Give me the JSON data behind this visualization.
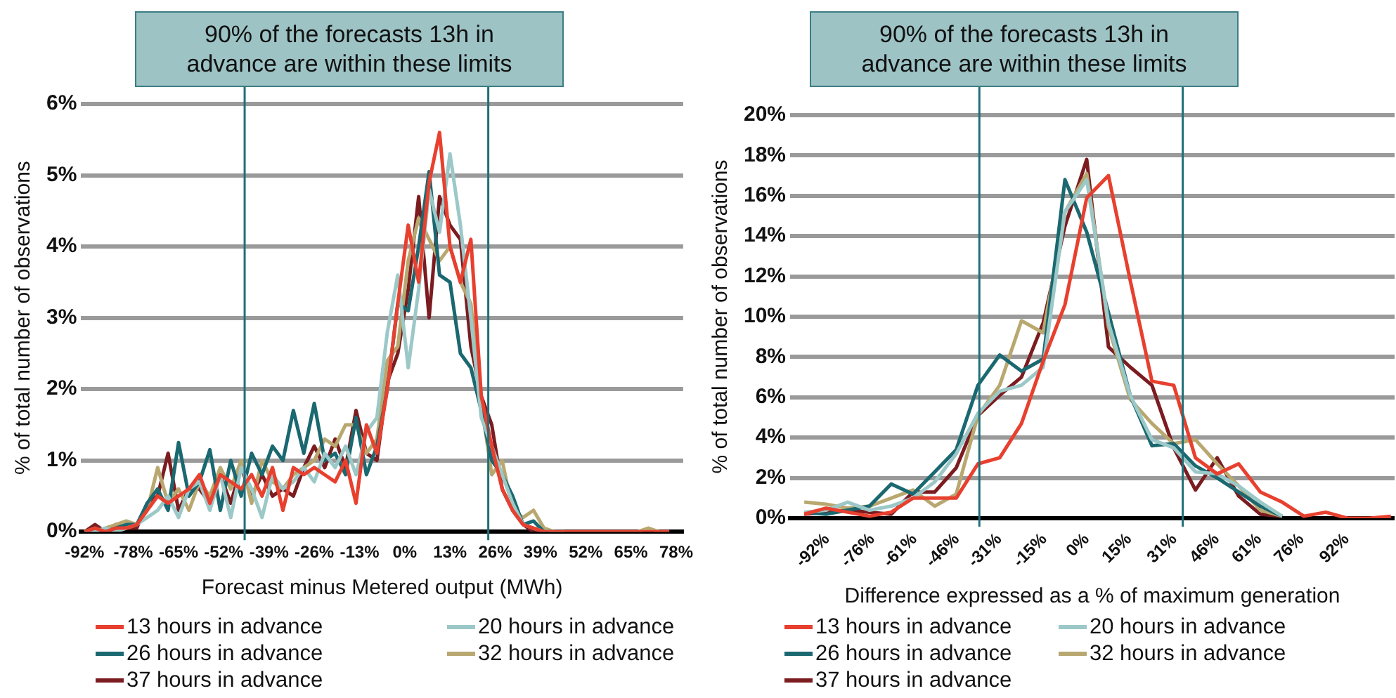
{
  "chart_data": [
    {
      "type": "line",
      "title": "90% of the forecasts 13h in advance are within these limits",
      "xlabel": "Forecast minus Metered output (MWh)",
      "ylabel": "% of total number of observations",
      "grid": "y",
      "legend": "bottom",
      "marker": "none",
      "line_style": "solid",
      "x": [
        -92,
        -89,
        -86,
        -83,
        -80,
        -77,
        -74,
        -71,
        -68,
        -65,
        -62,
        -59,
        -56,
        -53,
        -50,
        -47,
        -44,
        -41,
        -38,
        -35,
        -32,
        -29,
        -26,
        -23,
        -20,
        -17,
        -14,
        -11,
        -8,
        -5,
        -2,
        1,
        4,
        7,
        10,
        13,
        16,
        19,
        22,
        25,
        28,
        31,
        34,
        37,
        40,
        43,
        46,
        49,
        52,
        55,
        58,
        61,
        64,
        67,
        70,
        73,
        76
      ],
      "xlim": [
        -93,
        80
      ],
      "xticks": [
        {
          "value": -92,
          "label": "-92%"
        },
        {
          "value": -78,
          "label": "-78%"
        },
        {
          "value": -65,
          "label": "-65%"
        },
        {
          "value": -52,
          "label": "-52%"
        },
        {
          "value": -39,
          "label": "-39%"
        },
        {
          "value": -26,
          "label": "-26%"
        },
        {
          "value": -13,
          "label": "-13%"
        },
        {
          "value": 0,
          "label": "0%"
        },
        {
          "value": 13,
          "label": "13%"
        },
        {
          "value": 26,
          "label": "26%"
        },
        {
          "value": 39,
          "label": "39%"
        },
        {
          "value": 52,
          "label": "52%"
        },
        {
          "value": 65,
          "label": "65%"
        },
        {
          "value": 78,
          "label": "78%"
        }
      ],
      "ylim": [
        0,
        6
      ],
      "yticks": [
        {
          "value": 0,
          "label": "0%"
        },
        {
          "value": 1,
          "label": "1%"
        },
        {
          "value": 2,
          "label": "2%"
        },
        {
          "value": 3,
          "label": "3%"
        },
        {
          "value": 4,
          "label": "4%"
        },
        {
          "value": 5,
          "label": "5%"
        },
        {
          "value": 6,
          "label": "6%"
        }
      ],
      "ref_lines": [
        {
          "axis": "x",
          "value": -46,
          "color": "#1f6f78"
        },
        {
          "axis": "x",
          "value": 24,
          "color": "#1f6f78"
        }
      ],
      "series": [
        {
          "name": "13 hours in advance",
          "color": "#e8402f",
          "values": [
            0,
            0.05,
            0,
            0.05,
            0.05,
            0.1,
            0.3,
            0.5,
            0.4,
            0.5,
            0.6,
            0.8,
            0.4,
            0.8,
            0.7,
            0.6,
            0.8,
            0.5,
            0.9,
            0.3,
            0.9,
            0.8,
            0.9,
            0.8,
            0.7,
            1.0,
            0.4,
            1.5,
            1.1,
            2.0,
            3.2,
            4.3,
            3.5,
            4.9,
            5.6,
            4.0,
            3.5,
            4.1,
            1.9,
            1.2,
            0.6,
            0.3,
            0.1,
            0.05,
            0,
            0,
            0,
            0,
            0,
            0,
            0,
            0,
            0,
            0,
            0,
            0,
            0
          ]
        },
        {
          "name": "20 hours in advance",
          "color": "#9cc8c8",
          "values": [
            0,
            0,
            0.05,
            0,
            0.05,
            0.1,
            0.2,
            0.3,
            0.5,
            0.2,
            0.6,
            0.7,
            0.3,
            0.8,
            0.2,
            0.9,
            0.6,
            0.2,
            0.8,
            0.6,
            0.7,
            0.9,
            0.7,
            1.1,
            0.9,
            1.2,
            0.8,
            1.4,
            1.6,
            2.8,
            3.6,
            2.3,
            3.4,
            4.8,
            4.2,
            5.3,
            4.3,
            3.0,
            1.6,
            1.2,
            0.8,
            0.4,
            0.1,
            0.05,
            0,
            0,
            0,
            null,
            null,
            null,
            null,
            null,
            null,
            null,
            null,
            null,
            null
          ]
        },
        {
          "name": "26 hours in advance",
          "color": "#1a6870",
          "values": [
            0,
            0.05,
            0,
            0.05,
            0.1,
            0.1,
            0.4,
            0.6,
            0.3,
            1.25,
            0.5,
            0.7,
            1.15,
            0.3,
            1.0,
            0.5,
            1.1,
            0.8,
            1.2,
            1.0,
            1.7,
            1.1,
            1.8,
            1.0,
            1.1,
            0.8,
            1.6,
            0.8,
            1.2,
            2.0,
            3.2,
            3.1,
            4.0,
            5.05,
            3.6,
            3.5,
            2.5,
            2.3,
            1.7,
            1.0,
            0.8,
            0.5,
            0.1,
            0.15,
            0,
            0,
            0,
            null,
            null,
            null,
            null,
            null,
            null,
            null,
            null,
            null,
            null
          ]
        },
        {
          "name": "32 hours in advance",
          "color": "#b8a870",
          "values": [
            0,
            0,
            0.05,
            0.1,
            0.15,
            0.1,
            0.3,
            0.9,
            0.4,
            0.6,
            0.3,
            0.7,
            0.5,
            0.9,
            0.6,
            1.0,
            0.4,
            1.0,
            0.7,
            0.6,
            0.8,
            0.9,
            1.0,
            1.3,
            1.2,
            1.5,
            1.5,
            1.1,
            1.3,
            2.4,
            2.6,
            3.8,
            4.4,
            4.1,
            3.8,
            4.0,
            3.5,
            3.2,
            1.8,
            0.8,
            1.0,
            0.3,
            0.2,
            0.3,
            0.05,
            0,
            0,
            0,
            0,
            0,
            0,
            0,
            0,
            0,
            0.05,
            0,
            0
          ]
        },
        {
          "name": "37 hours in advance",
          "color": "#7b1c20",
          "values": [
            0,
            0.1,
            0,
            0.1,
            0.05,
            0.05,
            0.4,
            0.5,
            1.1,
            0.3,
            0.6,
            0.6,
            0.4,
            0.8,
            0.4,
            0.9,
            0.5,
            0.8,
            0.5,
            0.6,
            0.5,
            0.9,
            1.2,
            0.9,
            1.3,
            0.9,
            1.7,
            1.1,
            1.0,
            2.1,
            2.5,
            3.4,
            4.7,
            3.0,
            4.7,
            4.3,
            4.1,
            2.6,
            1.9,
            1.5,
            0.6,
            0.3,
            0.1,
            0,
            0,
            0,
            0,
            0,
            0,
            0,
            0,
            0,
            0,
            0,
            0,
            0,
            0
          ]
        }
      ]
    },
    {
      "type": "line",
      "title": "90% of the forecasts 13h in advance are within these limits",
      "xlabel": "Difference expressed as a % of maximum generation",
      "ylabel": "% of total number of observations",
      "grid": "y",
      "legend": "bottom",
      "marker": "none",
      "line_style": "solid",
      "x": [
        -100,
        -92.3,
        -84.6,
        -76.9,
        -69.2,
        -61.5,
        -53.8,
        -46.2,
        -38.5,
        -30.8,
        -23.1,
        -15.4,
        -7.7,
        0,
        7.7,
        15.4,
        23.1,
        30.8,
        38.5,
        46.2,
        53.8,
        61.5,
        69.2,
        76.9,
        84.6,
        92.3,
        100,
        107.7
      ],
      "xlim": [
        -105,
        109
      ],
      "xticks": [
        {
          "value": -92,
          "label": "-92%"
        },
        {
          "value": -76,
          "label": "-76%"
        },
        {
          "value": -61,
          "label": "-61%"
        },
        {
          "value": -46,
          "label": "-46%"
        },
        {
          "value": -31,
          "label": "-31%"
        },
        {
          "value": -15,
          "label": "-15%"
        },
        {
          "value": 0,
          "label": "0%"
        },
        {
          "value": 15,
          "label": "15%"
        },
        {
          "value": 31,
          "label": "31%"
        },
        {
          "value": 46,
          "label": "46%"
        },
        {
          "value": 61,
          "label": "61%"
        },
        {
          "value": 76,
          "label": "76%"
        },
        {
          "value": 92,
          "label": "92%"
        }
      ],
      "ylim": [
        0,
        20
      ],
      "yticks": [
        {
          "value": 0,
          "label": "0%"
        },
        {
          "value": 2,
          "label": "2%"
        },
        {
          "value": 4,
          "label": "4%"
        },
        {
          "value": 6,
          "label": "6%"
        },
        {
          "value": 8,
          "label": "8%"
        },
        {
          "value": 10,
          "label": "10%"
        },
        {
          "value": 12,
          "label": "12%"
        },
        {
          "value": 14,
          "label": "14%"
        },
        {
          "value": 16,
          "label": "16%"
        },
        {
          "value": 18,
          "label": "18%"
        },
        {
          "value": 20,
          "label": "20%"
        }
      ],
      "ref_lines": [
        {
          "axis": "x",
          "value": -38,
          "color": "#1f6f78"
        },
        {
          "axis": "x",
          "value": 34,
          "color": "#1f6f78"
        }
      ],
      "series": [
        {
          "name": "13 hours in advance",
          "color": "#e8402f",
          "values": [
            0.2,
            0.5,
            0.3,
            0.1,
            0.3,
            1.0,
            1.0,
            1.0,
            2.7,
            3.0,
            4.7,
            7.8,
            10.6,
            15.9,
            17.0,
            11.8,
            6.8,
            6.6,
            3.0,
            2.2,
            2.7,
            1.3,
            0.8,
            0.1,
            0.3,
            0,
            0,
            0.1
          ]
        },
        {
          "name": "20 hours in advance",
          "color": "#9cc8c8",
          "values": [
            0.3,
            0.4,
            0.8,
            0.4,
            0.6,
            1.0,
            1.8,
            3.2,
            5.2,
            6.3,
            6.6,
            7.5,
            15.2,
            16.8,
            9.7,
            6.1,
            3.9,
            3.5,
            2.3,
            2.2,
            1.6,
            0.8,
            0.1,
            null,
            null,
            null,
            null,
            null
          ]
        },
        {
          "name": "26 hours in advance",
          "color": "#1a6870",
          "values": [
            0.3,
            0.2,
            0.4,
            0.6,
            1.7,
            1.2,
            2.3,
            3.4,
            6.6,
            8.1,
            7.3,
            7.9,
            16.8,
            14.2,
            10.2,
            6.1,
            3.6,
            3.7,
            2.6,
            2.0,
            1.3,
            0.6,
            0.1,
            null,
            null,
            null,
            null,
            null
          ]
        },
        {
          "name": "32 hours in advance",
          "color": "#b8a870",
          "values": [
            0.8,
            0.7,
            0.5,
            0.6,
            1.0,
            1.4,
            0.6,
            1.2,
            5.1,
            6.6,
            9.8,
            9.2,
            15.2,
            17.1,
            9.5,
            5.9,
            4.7,
            3.7,
            3.9,
            2.7,
            1.6,
            0.4,
            0.1,
            null,
            null,
            null,
            null,
            null
          ]
        },
        {
          "name": "37 hours in advance",
          "color": "#7b1c20",
          "values": [
            0.2,
            0.3,
            0.4,
            0.3,
            0.2,
            1.3,
            1.3,
            2.5,
            5.1,
            6.1,
            7.0,
            9.7,
            14.5,
            17.8,
            8.5,
            7.5,
            6.6,
            3.5,
            1.4,
            3.0,
            1.1,
            0.2,
            0.1,
            null,
            null,
            null,
            null,
            null
          ]
        }
      ]
    }
  ]
}
